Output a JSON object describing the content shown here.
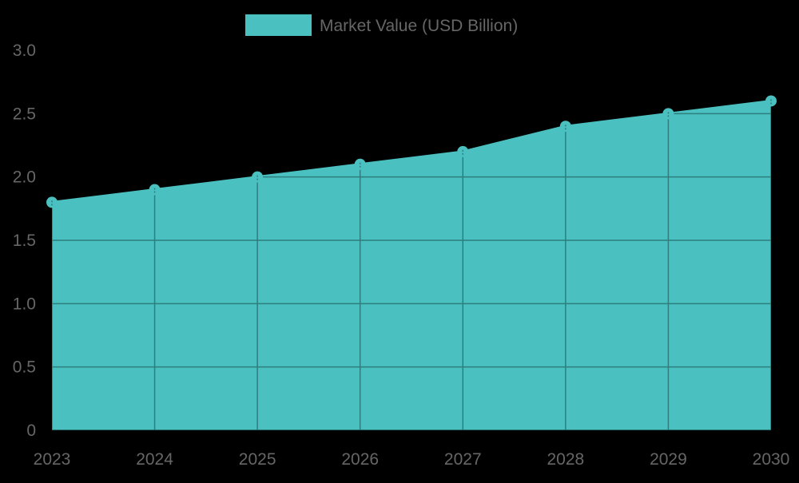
{
  "chart_data": {
    "type": "area",
    "title": "",
    "xlabel": "",
    "ylabel": "",
    "categories": [
      "2023",
      "2024",
      "2025",
      "2026",
      "2027",
      "2028",
      "2029",
      "2030"
    ],
    "series": [
      {
        "name": "Market Value (USD Billion)",
        "values": [
          1.8,
          1.9,
          2.0,
          2.1,
          2.2,
          2.4,
          2.5,
          2.6
        ],
        "color": "#4BC0C0"
      }
    ],
    "ylim": [
      0,
      3.0
    ],
    "yticks": [
      "0",
      "0.5",
      "1.0",
      "1.5",
      "2.0",
      "2.5",
      "3.0"
    ],
    "grid": true,
    "legend_position": "top"
  },
  "legend": {
    "label": "Market Value (USD Billion)",
    "swatch_color": "#4BC0C0"
  },
  "colors": {
    "background": "#000000",
    "fill": "#4BC0C0",
    "grid_on_fill": "#2E7E7E",
    "tick_text": "#666666"
  }
}
